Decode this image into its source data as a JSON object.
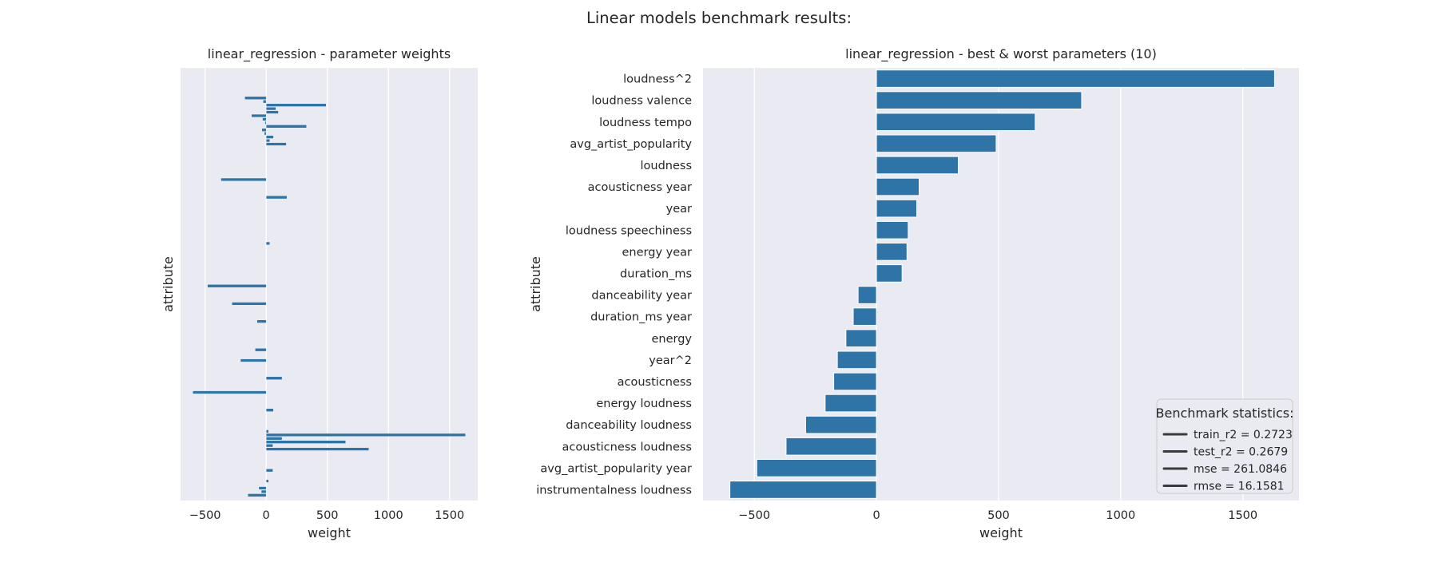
{
  "figure": {
    "suptitle": "Linear models benchmark results:"
  },
  "colors": {
    "bar": "#2f74a7",
    "panel": "#eaeaf2",
    "grid": "#ffffff",
    "text": "#262626"
  },
  "chart_data": [
    {
      "type": "bar",
      "orientation": "horizontal",
      "title": "linear_regression - parameter weights",
      "xlabel": "weight",
      "ylabel": "attribute",
      "xlim": [
        -700,
        1730
      ],
      "xticks": [
        -500,
        0,
        500,
        1000,
        1500
      ],
      "xtick_labels": [
        "−500",
        "0",
        "500",
        "1000",
        "1500"
      ],
      "ytick_labels_shown": false,
      "grid": true,
      "n_categories": 120,
      "values": [
        0,
        0,
        0,
        0,
        0,
        0,
        0,
        0,
        -175,
        -25,
        490,
        80,
        100,
        -120,
        -30,
        -10,
        330,
        -35,
        -15,
        60,
        30,
        165,
        0,
        0,
        0,
        0,
        0,
        0,
        0,
        0,
        0,
        -370,
        0,
        0,
        0,
        0,
        170,
        0,
        0,
        0,
        0,
        0,
        0,
        0,
        0,
        0,
        0,
        0,
        0,
        30,
        0,
        0,
        0,
        0,
        0,
        0,
        0,
        0,
        0,
        0,
        0,
        -480,
        0,
        0,
        0,
        0,
        -280,
        0,
        0,
        0,
        0,
        -75,
        0,
        0,
        0,
        0,
        0,
        0,
        0,
        -90,
        0,
        0,
        -210,
        0,
        0,
        0,
        0,
        130,
        0,
        0,
        0,
        -600,
        0,
        0,
        0,
        0,
        60,
        0,
        0,
        0,
        0,
        0,
        20,
        1630,
        130,
        650,
        55,
        840,
        0,
        0,
        0,
        0,
        0,
        55,
        0,
        0,
        20,
        0,
        -60,
        -40,
        -150,
        0
      ]
    },
    {
      "type": "bar",
      "orientation": "horizontal",
      "title": "linear_regression - best & worst parameters (10)",
      "xlabel": "weight",
      "ylabel": "attribute",
      "xlim": [
        -710,
        1730
      ],
      "xticks": [
        -500,
        0,
        500,
        1000,
        1500
      ],
      "xtick_labels": [
        "−500",
        "0",
        "500",
        "1000",
        "1500"
      ],
      "grid": true,
      "categories": [
        "loudness^2",
        "loudness valence",
        "loudness tempo",
        "avg_artist_popularity",
        "loudness",
        "acousticness year",
        "year",
        "loudness speechiness",
        "energy year",
        "duration_ms",
        "danceability year",
        "duration_ms year",
        "energy",
        "year^2",
        "acousticness",
        "energy loudness",
        "danceability loudness",
        "acousticness loudness",
        "avg_artist_popularity year",
        "instrumentalness loudness"
      ],
      "values": [
        1630,
        840,
        650,
        490,
        335,
        175,
        165,
        130,
        125,
        105,
        -75,
        -95,
        -125,
        -160,
        -175,
        -210,
        -290,
        -370,
        -490,
        -600
      ],
      "legend": {
        "title": "Benchmark statistics:",
        "placement": "lower right",
        "entries": [
          "train_r2 = 0.2723",
          "test_r2 = 0.2679",
          "mse = 261.0846",
          "rmse = 16.1581"
        ]
      }
    }
  ]
}
